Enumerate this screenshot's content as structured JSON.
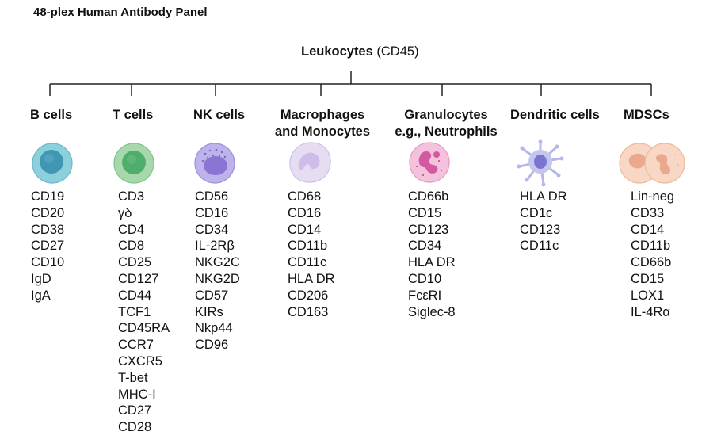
{
  "panel_title": "48-plex Human Antibody Panel",
  "root": {
    "name": "Leukocytes",
    "marker": "(CD45)"
  },
  "columns": [
    {
      "header_lines": [
        "B cells"
      ],
      "icon": "b-cell-icon",
      "colors": {
        "outer": "#8cd0dc",
        "inner": "#3f97b4"
      },
      "markers": [
        "CD19",
        "CD20",
        "CD38",
        "CD27",
        "CD10",
        "IgD",
        "IgA"
      ]
    },
    {
      "header_lines": [
        "T cells"
      ],
      "icon": "t-cell-icon",
      "colors": {
        "outer": "#a6d8ab",
        "inner": "#4fae6a"
      },
      "markers": [
        "CD3",
        "γδ",
        "CD4",
        "CD8",
        "CD25",
        "CD127",
        "CD44",
        "TCF1",
        "CD45RA",
        "CCR7",
        "CXCR5",
        "T-bet",
        "MHC-I",
        "CD27",
        "CD28"
      ]
    },
    {
      "header_lines": [
        "NK cells"
      ],
      "icon": "nk-cell-icon",
      "colors": {
        "outer": "#bdb2ea",
        "inner": "#8b75d4"
      },
      "markers": [
        "CD56",
        "CD16",
        "CD34",
        "IL-2Rβ",
        "NKG2C",
        "NKG2D",
        "CD57",
        "KIRs",
        "Nkp44",
        "CD96"
      ]
    },
    {
      "header_lines": [
        "Macrophages",
        "and Monocytes"
      ],
      "icon": "macrophage-icon",
      "colors": {
        "outer": "#e6ddf3",
        "inner": "#cdbde8"
      },
      "markers": [
        "CD68",
        "CD16",
        "CD14",
        "CD11b",
        "CD11c",
        "HLA DR",
        "CD206",
        "CD163"
      ]
    },
    {
      "header_lines": [
        "Granulocytes",
        "e.g., Neutrophils"
      ],
      "icon": "neutrophil-icon",
      "colors": {
        "outer": "#f4c2dc",
        "inner": "#d25aa0"
      },
      "markers": [
        "CD66b",
        "CD15",
        "CD123",
        "CD34",
        "HLA DR",
        "CD10",
        "FcεRI",
        "Siglec-8"
      ]
    },
    {
      "header_lines": [
        "Dendritic cells"
      ],
      "icon": "dendritic-cell-icon",
      "colors": {
        "outer": "#c4c6ee",
        "inner": "#7b74d0"
      },
      "markers": [
        "HLA DR",
        "CD1c",
        "CD123",
        "CD11c"
      ]
    },
    {
      "header_lines": [
        "MDSCs"
      ],
      "icon": "mdsc-icon",
      "colors": {
        "outer": "#f8d8c4",
        "inner": "#eaa88c"
      },
      "markers": [
        "Lin-neg",
        "CD33",
        "CD14",
        "CD11b",
        "CD66b",
        "CD15",
        "LOX1",
        "IL-4Rα"
      ]
    }
  ]
}
